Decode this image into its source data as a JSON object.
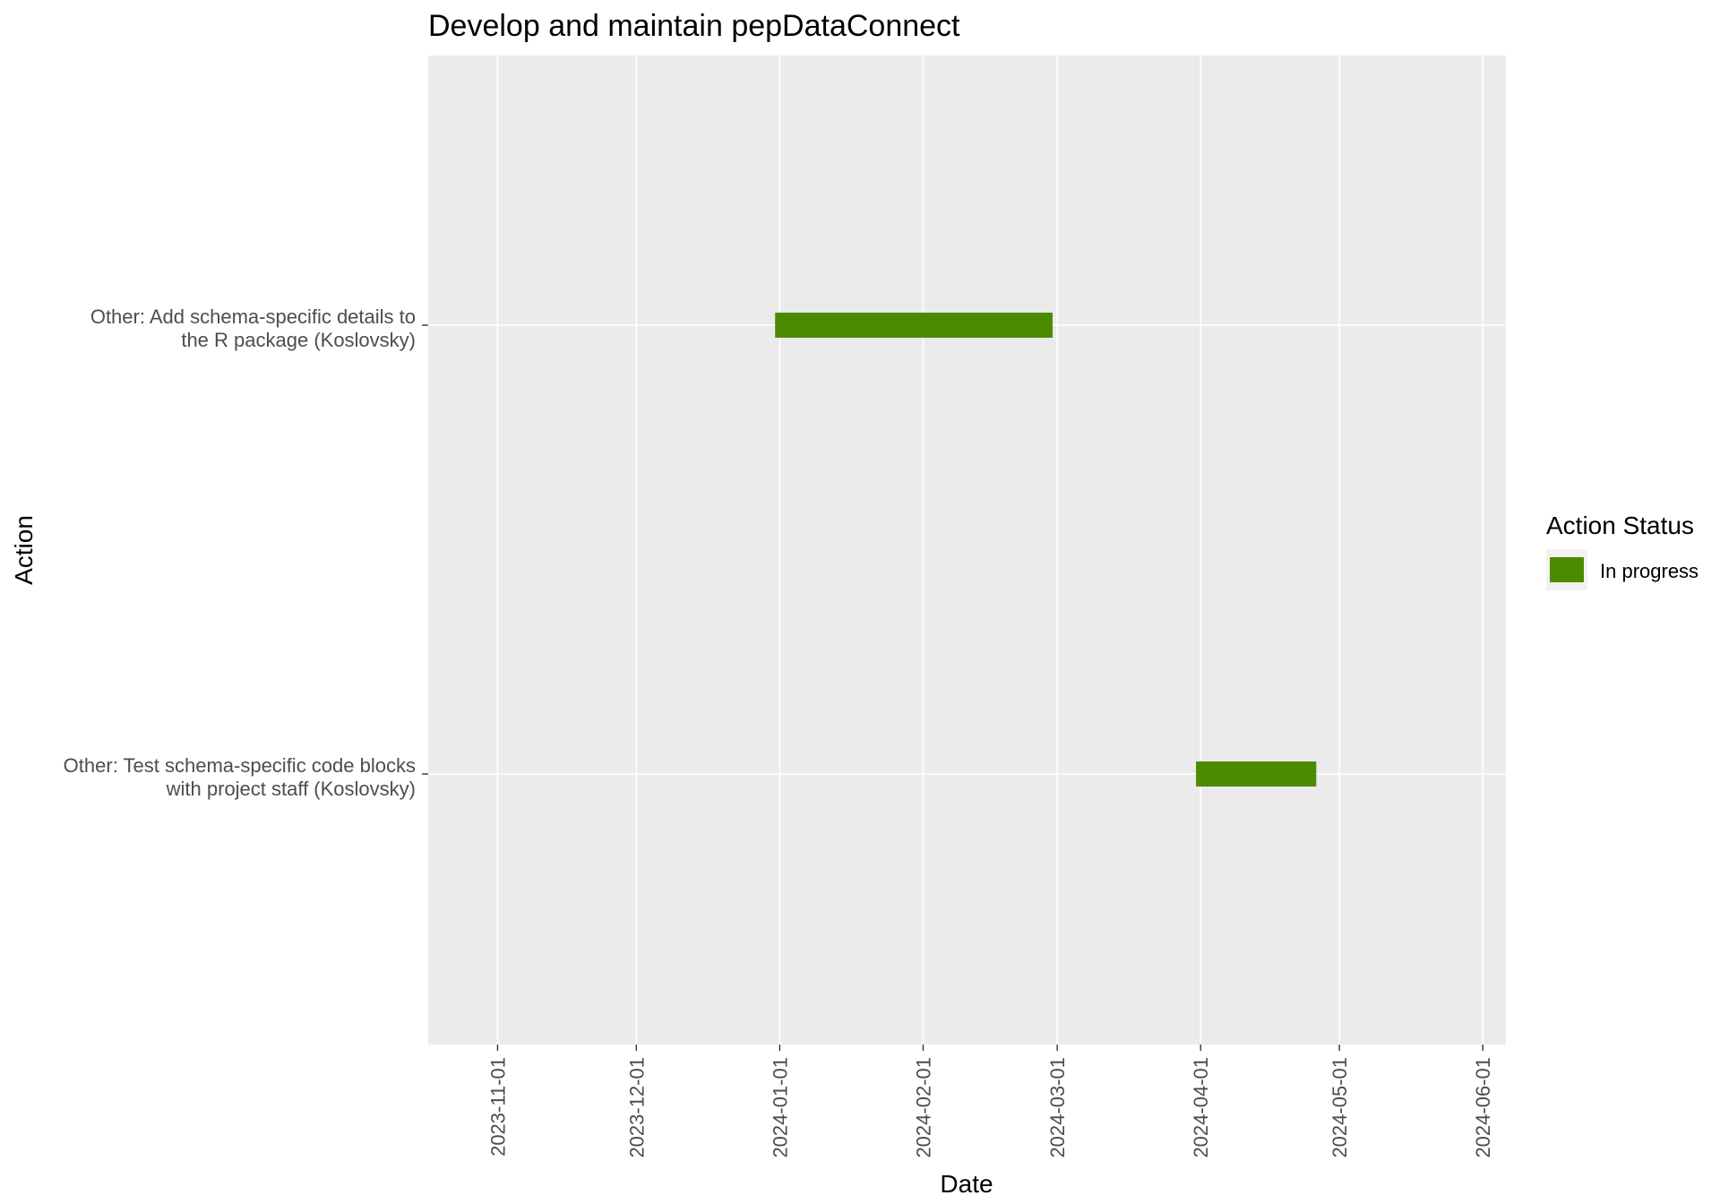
{
  "chart_data": {
    "type": "bar",
    "orientation": "horizontal-gantt",
    "title": "Develop and maintain pepDataConnect",
    "xlabel": "Date",
    "ylabel": "Action",
    "x_ticks": [
      "2023-11-01",
      "2023-12-01",
      "2024-01-01",
      "2024-02-01",
      "2024-03-01",
      "2024-04-01",
      "2024-05-01",
      "2024-06-01"
    ],
    "xlim": [
      "2023-10-17",
      "2024-06-06"
    ],
    "categories": [
      {
        "line1": "Other: Add schema-specific details to",
        "line2": "the R package (Koslovsky)"
      },
      {
        "line1": "Other: Test schema-specific code blocks",
        "line2": "with project staff (Koslovsky)"
      }
    ],
    "series": [
      {
        "name": "In progress",
        "color": "#4B8B00",
        "values": [
          {
            "start": "2023-12-31",
            "end": "2024-02-29"
          },
          {
            "start": "2024-03-31",
            "end": "2024-04-26"
          }
        ]
      }
    ],
    "legend": {
      "title": "Action Status",
      "position": "right"
    },
    "grid": true,
    "panel_background": "#EBEBEB",
    "grid_color": "#FFFFFF"
  }
}
